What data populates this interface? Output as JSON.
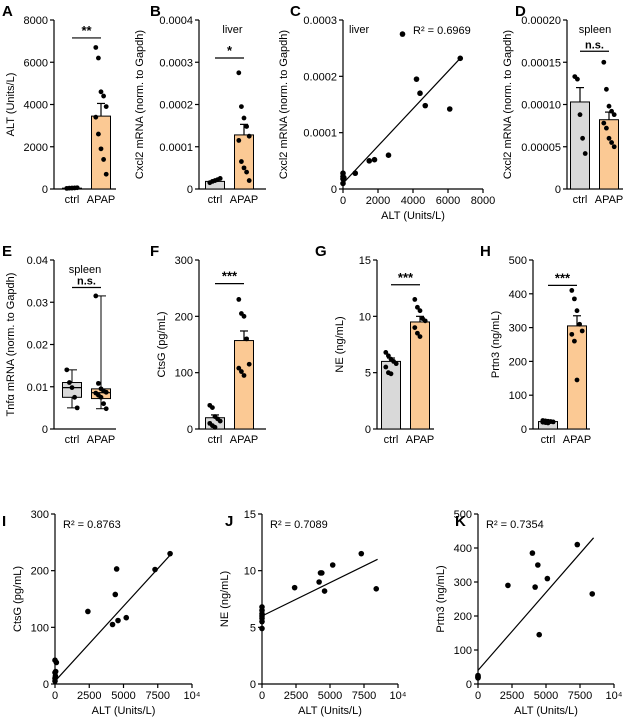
{
  "colors": {
    "ctrl": "#d9d9d9",
    "apap": "#fbc994",
    "axis": "#000000",
    "dot": "#000000"
  },
  "chart_data": [
    {
      "id": "A",
      "letter": "A",
      "type": "bar",
      "ylabel": "ALT (Units/L)",
      "ylim": [
        0,
        8000
      ],
      "yticks": [
        0,
        2000,
        4000,
        6000,
        8000
      ],
      "ytick_labels": [
        "0",
        "2000",
        "4000",
        "6000",
        "8000"
      ],
      "categories": [
        "ctrl",
        "APAP"
      ],
      "series": [
        {
          "name": "ctrl",
          "mean": 40,
          "sem": 10,
          "points": [
            30,
            40,
            45,
            50,
            60
          ]
        },
        {
          "name": "APAP",
          "mean": 3450,
          "sem": 600,
          "points": [
            6700,
            6200,
            4600,
            4400,
            3900,
            3400,
            2600,
            1900,
            1400,
            700
          ]
        }
      ],
      "sig": {
        "label": "**",
        "y": 7150,
        "from": 0,
        "to": 1
      }
    },
    {
      "id": "B",
      "letter": "B",
      "type": "bar",
      "ylabel": "Cxcl2 mRNA (norm. to Gapdh)",
      "inner_label": "liver",
      "ylim": [
        0,
        0.0004
      ],
      "yticks": [
        0,
        0.0001,
        0.0002,
        0.0003,
        0.0004
      ],
      "ytick_labels": [
        "0",
        "0.0001",
        "0.0002",
        "0.0003",
        "0.0004"
      ],
      "categories": [
        "ctrl",
        "APAP"
      ],
      "series": [
        {
          "name": "ctrl",
          "mean": 1.8e-05,
          "sem": 2e-06,
          "points": [
            1.5e-05,
            1.8e-05,
            2e-05,
            2.2e-05,
            2.5e-05
          ]
        },
        {
          "name": "APAP",
          "mean": 0.000128,
          "sem": 2.5e-05,
          "points": [
            0.000275,
            0.000195,
            0.000168,
            0.000148,
            0.000125,
            0.000115,
            6.5e-05,
            5e-05,
            4e-05,
            2e-05
          ]
        }
      ],
      "sig": {
        "label": "*",
        "y": 0.00031,
        "from": 0,
        "to": 1
      }
    },
    {
      "id": "C",
      "letter": "C",
      "type": "scatter",
      "xlabel": "ALT (Units/L)",
      "ylabel": "Cxcl2 mRNA (norm. to Gapdh)",
      "inner_label": "liver",
      "r2": "R² = 0.6969",
      "xlim": [
        0,
        8000
      ],
      "xticks": [
        0,
        2000,
        4000,
        6000,
        8000
      ],
      "xtick_labels": [
        "0",
        "2000",
        "4000",
        "6000",
        "8000"
      ],
      "ylim": [
        0,
        0.0003
      ],
      "yticks": [
        0,
        0.0001,
        0.0002,
        0.0003
      ],
      "ytick_labels": [
        "0",
        "0.0001",
        "0.0002",
        "0.0003"
      ],
      "x": [
        0,
        0,
        0,
        0,
        50,
        700,
        1500,
        1800,
        2600,
        3400,
        4200,
        4400,
        4700,
        6100,
        6700
      ],
      "y": [
        1e-05,
        1.8e-05,
        2.2e-05,
        2.8e-05,
        2e-05,
        2.8e-05,
        5e-05,
        5.2e-05,
        6e-05,
        0.000275,
        0.000195,
        0.00017,
        0.000148,
        0.000142,
        0.000232
      ],
      "fit": [
        [
          0,
          1e-05
        ],
        [
          6700,
          0.000232
        ]
      ]
    },
    {
      "id": "D",
      "letter": "D",
      "type": "bar",
      "ylabel": "Cxcl2 mRNA (norm. to Gapdh)",
      "inner_label": "spleen",
      "ylim": [
        0,
        0.0002
      ],
      "yticks": [
        0,
        5e-05,
        0.0001,
        0.00015,
        0.0002
      ],
      "ytick_labels": [
        "0",
        "0.00005",
        "0.00010",
        "0.00015",
        "0.00020"
      ],
      "categories": [
        "ctrl",
        "APAP"
      ],
      "series": [
        {
          "name": "ctrl",
          "mean": 0.000103,
          "sem": 1.7e-05,
          "points": [
            0.000133,
            0.00013,
            8.8e-05,
            6e-05,
            4.2e-05
          ]
        },
        {
          "name": "APAP",
          "mean": 8.2e-05,
          "sem": 9e-06,
          "points": [
            0.00015,
            0.000118,
            9.8e-05,
            9.2e-05,
            8.8e-05,
            7.8e-05,
            7.2e-05,
            6e-05,
            5.5e-05,
            5e-05
          ]
        }
      ],
      "sig": {
        "label": "n.s.",
        "y": 0.000163,
        "from": 0,
        "to": 1
      }
    },
    {
      "id": "E",
      "letter": "E",
      "type": "box",
      "ylabel": "Tnfα mRNA (norm. to Gapdh)",
      "inner_label": "spleen",
      "ylim": [
        0,
        0.04
      ],
      "yticks": [
        0,
        0.01,
        0.02,
        0.03,
        0.04
      ],
      "ytick_labels": [
        "0",
        "0.01",
        "0.02",
        "0.03",
        "0.04"
      ],
      "categories": [
        "ctrl",
        "APAP"
      ],
      "series": [
        {
          "name": "ctrl",
          "min": 0.005,
          "q1": 0.0075,
          "median": 0.0098,
          "q3": 0.011,
          "max": 0.014,
          "points": [
            0.014,
            0.011,
            0.0098,
            0.0075,
            0.005
          ]
        },
        {
          "name": "APAP",
          "min": 0.0048,
          "q1": 0.0072,
          "median": 0.0086,
          "q3": 0.0095,
          "max": 0.0315,
          "points": [
            0.0315,
            0.0108,
            0.0095,
            0.009,
            0.0087,
            0.0085,
            0.008,
            0.0075,
            0.006,
            0.0048
          ]
        }
      ],
      "sig": {
        "label": "n.s.",
        "y": 0.0335,
        "from": 0,
        "to": 1
      }
    },
    {
      "id": "F",
      "letter": "F",
      "type": "bar",
      "ylabel": "CtsG (pg/mL)",
      "ylim": [
        0,
        300
      ],
      "yticks": [
        0,
        100,
        200,
        300
      ],
      "ytick_labels": [
        "0",
        "100",
        "200",
        "300"
      ],
      "categories": [
        "ctrl",
        "APAP"
      ],
      "series": [
        {
          "name": "ctrl",
          "mean": 20,
          "sem": 5,
          "points": [
            42,
            38,
            22,
            18,
            14,
            10,
            6,
            3
          ]
        },
        {
          "name": "APAP",
          "mean": 157,
          "sem": 17,
          "points": [
            230,
            205,
            200,
            160,
            115,
            108,
            102,
            95
          ]
        }
      ],
      "sig": {
        "label": "***",
        "y": 258,
        "from": 0,
        "to": 1
      }
    },
    {
      "id": "G",
      "letter": "G",
      "type": "bar",
      "ylabel": "NE (ng/mL)",
      "ylim": [
        0,
        15
      ],
      "yticks": [
        0,
        5,
        10,
        15
      ],
      "ytick_labels": [
        "0",
        "5",
        "10",
        "15"
      ],
      "categories": [
        "ctrl",
        "APAP"
      ],
      "series": [
        {
          "name": "ctrl",
          "mean": 6,
          "sem": 0.3,
          "points": [
            6.8,
            6.5,
            6.2,
            6,
            5.8,
            5.5,
            5,
            4.9
          ]
        },
        {
          "name": "APAP",
          "mean": 9.5,
          "sem": 0.5,
          "points": [
            11.5,
            10.8,
            10.5,
            9.8,
            9.6,
            9,
            8.5,
            8.2
          ]
        }
      ],
      "sig": {
        "label": "***",
        "y": 12.8,
        "from": 0,
        "to": 1
      }
    },
    {
      "id": "H",
      "letter": "H",
      "type": "bar",
      "ylabel": "Prtn3 (ng/mL)",
      "ylim": [
        0,
        500
      ],
      "yticks": [
        0,
        100,
        200,
        300,
        400,
        500
      ],
      "ytick_labels": [
        "0",
        "100",
        "200",
        "300",
        "400",
        "500"
      ],
      "categories": [
        "ctrl",
        "APAP"
      ],
      "series": [
        {
          "name": "ctrl",
          "mean": 22,
          "sem": 2,
          "points": [
            25,
            24,
            23,
            22,
            21,
            20,
            19,
            18
          ]
        },
        {
          "name": "APAP",
          "mean": 305,
          "sem": 30,
          "points": [
            410,
            385,
            350,
            310,
            290,
            280,
            260,
            145
          ]
        }
      ],
      "sig": {
        "label": "***",
        "y": 425,
        "from": 0,
        "to": 1
      }
    },
    {
      "id": "I",
      "letter": "I",
      "type": "scatter",
      "xlabel": "ALT (Units/L)",
      "ylabel": "CtsG (pg/mL)",
      "r2": "R² = 0.8763",
      "xlim": [
        0,
        10000
      ],
      "xticks": [
        0,
        2500,
        5000,
        7500,
        10000
      ],
      "xtick_labels": [
        "0",
        "2500",
        "5000",
        "7500",
        "10⁴"
      ],
      "ylim": [
        0,
        300
      ],
      "yticks": [
        0,
        100,
        200,
        300
      ],
      "ytick_labels": [
        "0",
        "100",
        "200",
        "300"
      ],
      "x": [
        0,
        0,
        0,
        0,
        100,
        50,
        30,
        2400,
        4200,
        4400,
        4500,
        4600,
        5200,
        7300,
        8400
      ],
      "y": [
        5,
        10,
        20,
        42,
        38,
        22,
        14,
        128,
        105,
        158,
        203,
        112,
        117,
        202,
        230
      ],
      "fit": [
        [
          0,
          5
        ],
        [
          8500,
          230
        ]
      ]
    },
    {
      "id": "J",
      "letter": "J",
      "type": "scatter",
      "xlabel": "ALT (Units/L)",
      "ylabel": "NE (ng/mL)",
      "r2": "R² = 0.7089",
      "xlim": [
        0,
        10000
      ],
      "xticks": [
        0,
        2500,
        5000,
        7500,
        10000
      ],
      "xtick_labels": [
        "0",
        "2500",
        "5000",
        "7500",
        "10⁴"
      ],
      "ylim": [
        0,
        15
      ],
      "yticks": [
        0,
        5,
        10,
        15
      ],
      "ytick_labels": [
        "0",
        "5",
        "10",
        "15"
      ],
      "x": [
        0,
        0,
        0,
        0,
        0,
        0,
        0,
        2400,
        4200,
        4300,
        4400,
        4600,
        5200,
        7300,
        8400
      ],
      "y": [
        4.9,
        5.5,
        5.8,
        6,
        6.2,
        6.5,
        6.8,
        8.5,
        9,
        9.8,
        9.8,
        8.2,
        10.5,
        11.5,
        8.4
      ],
      "fit": [
        [
          0,
          6
        ],
        [
          8500,
          11
        ]
      ]
    },
    {
      "id": "K",
      "letter": "K",
      "type": "scatter",
      "xlabel": "ALT (Units/L)",
      "ylabel": "Prtn3 (ng/mL)",
      "r2": "R² = 0.7354",
      "xlim": [
        0,
        10000
      ],
      "xticks": [
        0,
        2500,
        5000,
        7500,
        10000
      ],
      "xtick_labels": [
        "0",
        "2500",
        "5000",
        "7500",
        "10⁴"
      ],
      "ylim": [
        0,
        500
      ],
      "yticks": [
        0,
        100,
        200,
        300,
        400,
        500
      ],
      "ytick_labels": [
        "0",
        "100",
        "200",
        "300",
        "400",
        "500"
      ],
      "x": [
        0,
        0,
        0,
        0,
        2200,
        4000,
        4200,
        4400,
        4500,
        5100,
        7300,
        8400
      ],
      "y": [
        18,
        20,
        22,
        25,
        290,
        385,
        285,
        350,
        145,
        310,
        410,
        265
      ],
      "fit": [
        [
          0,
          40
        ],
        [
          8500,
          430
        ]
      ]
    }
  ]
}
